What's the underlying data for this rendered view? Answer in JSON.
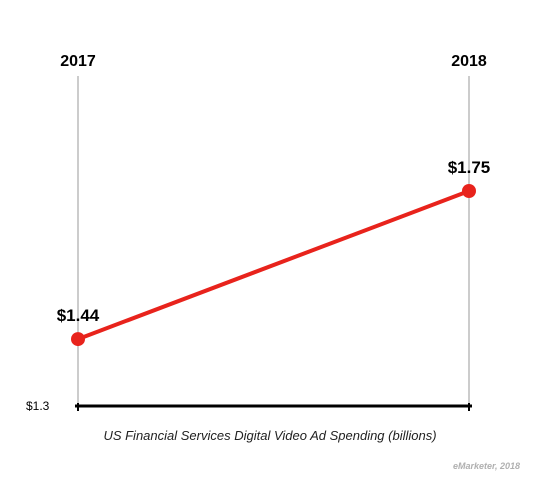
{
  "chart_data": {
    "type": "line",
    "categories": [
      "2017",
      "2018"
    ],
    "series": [
      {
        "values": [
          1.44,
          1.75
        ]
      }
    ],
    "value_labels": [
      "$1.44",
      "$1.75"
    ],
    "ytick_label": "$1.3",
    "ybase": 1.3,
    "ylim": [
      1.3,
      1.85
    ],
    "title": "US Financial Services Digital Video Ad Spending (billions)",
    "xlabel": "",
    "ylabel": "",
    "grid": false,
    "line_color": "#e8231c"
  },
  "source": "eMarketer, 2018"
}
